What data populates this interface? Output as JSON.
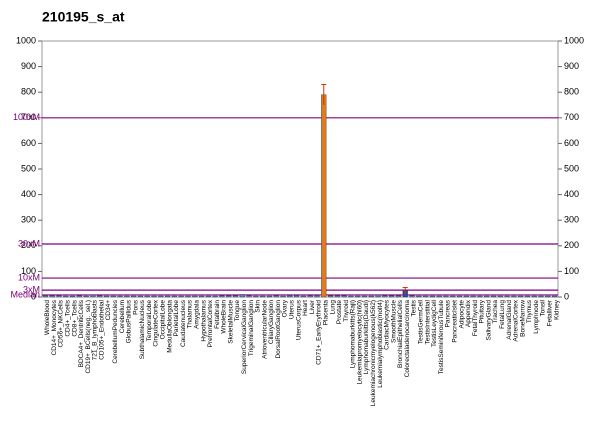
{
  "chart_data": {
    "type": "bar",
    "title": "210195_s_at",
    "categories": [
      "WholeBlood",
      "CD14+_Monocytes",
      "CD56+_NKCells",
      "CD4+_Tcells",
      "CD8+_Tcells",
      "BDCA4+_DentriticCells",
      "CD19+_BCells(neg._sel.)",
      "721_B_lymphoblasts",
      "CD105+_Endothelial",
      "CD34+",
      "CerebellumPeduncles",
      "Cerebellum",
      "GlobusPallidus",
      "Pons",
      "SubthalamicNucleus",
      "TemporalLobe",
      "CingulateCortex",
      "OccipitalLobe",
      "MedullaOblongata",
      "ParietalLobe",
      "Caudatenucleus",
      "Thalamus",
      "Amygdala",
      "Hypothalamus",
      "PrefrontalCortex",
      "Fetalbrain",
      "WholeBrain",
      "SkeletalMuscle",
      "Tongue",
      "SuperiorCervicalGanglion",
      "TrigeminalGanglion",
      "Skin",
      "AtrioventricularNode",
      "CiliaryGanglion",
      "DorsalRootGanglion",
      "Ovary",
      "Uterus",
      "UterusCorpus",
      "Heart",
      "Liver",
      "CD71+_EarlyErythroid",
      "Placenta",
      "Lung",
      "Prostate",
      "Thyroid",
      "Lymphomaburkitts(Raji)",
      "Leukemiapromyelocytic(hl60)",
      "Lymphomaburkitts(Daudi)",
      "Leukemiachronicmyelogenous(k562)",
      "Leukemialymphoblastic(molt4)",
      "CardiacMyocytes",
      "SmoothMuscle",
      "BronchialEpithelialCells",
      "Colorectaladenocarcinoma",
      "Testis",
      "TestisGermCell",
      "TestisInterstitial",
      "TestisLeydigCell",
      "TestisSeminiferousTubule",
      "Pancreas",
      "PancreaticIslet",
      "Adipocyte",
      "Appendix",
      "FetalThyroid",
      "Pituitary",
      "SalivaryGland",
      "Trachea",
      "FetalLung",
      "AdrenalGland",
      "AdrenalCortex",
      "BoneMarrow",
      "Thymus",
      "Lymphnode",
      "Tonsil",
      "Fetalliver",
      "Kidney"
    ],
    "values": [
      6,
      5,
      5,
      4,
      4,
      5,
      4,
      8,
      5,
      4,
      4,
      4,
      4,
      4,
      4,
      4,
      4,
      4,
      4,
      4,
      4,
      4,
      4,
      4,
      4,
      4,
      5,
      5,
      5,
      10,
      5,
      4,
      4,
      4,
      5,
      4,
      6,
      6,
      4,
      5,
      6,
      790,
      5,
      5,
      5,
      4,
      4,
      4,
      4,
      8,
      5,
      5,
      5,
      25,
      5,
      4,
      4,
      4,
      4,
      4,
      4,
      4,
      4,
      4,
      4,
      4,
      4,
      4,
      4,
      4,
      4,
      4,
      4,
      4,
      4,
      4
    ],
    "errors": [
      null,
      null,
      null,
      null,
      null,
      null,
      null,
      null,
      null,
      null,
      null,
      null,
      null,
      null,
      null,
      null,
      null,
      null,
      null,
      null,
      null,
      null,
      null,
      null,
      null,
      null,
      null,
      null,
      null,
      null,
      null,
      null,
      null,
      null,
      null,
      null,
      null,
      null,
      null,
      null,
      null,
      40,
      null,
      null,
      null,
      null,
      null,
      null,
      null,
      null,
      null,
      null,
      null,
      12,
      null,
      null,
      null,
      null,
      null,
      null,
      null,
      null,
      null,
      null,
      null,
      null,
      null,
      null,
      null,
      null,
      null,
      null,
      null,
      null,
      null,
      null
    ],
    "colors": [
      "#5a7fc0",
      "#5a7fc0",
      "#5a7fc0",
      "#5a7fc0",
      "#5a7fc0",
      "#5a7fc0",
      "#5a7fc0",
      "#5a7fc0",
      "#5a7fc0",
      "#5a7fc0",
      "#5a7fc0",
      "#5a7fc0",
      "#5a7fc0",
      "#5a7fc0",
      "#5a7fc0",
      "#5a7fc0",
      "#5a7fc0",
      "#5a7fc0",
      "#5a7fc0",
      "#5a7fc0",
      "#5a7fc0",
      "#5a7fc0",
      "#5a7fc0",
      "#5a7fc0",
      "#5a7fc0",
      "#5a7fc0",
      "#5a7fc0",
      "#5a7fc0",
      "#5a7fc0",
      "#5a7fc0",
      "#5a7fc0",
      "#5a7fc0",
      "#5a7fc0",
      "#5a7fc0",
      "#5a7fc0",
      "#5a7fc0",
      "#5a7fc0",
      "#5a7fc0",
      "#5a7fc0",
      "#5a7fc0",
      "#5a7fc0",
      "#e07b20",
      "#5a7fc0",
      "#5a7fc0",
      "#5a7fc0",
      "#5a7fc0",
      "#5a7fc0",
      "#5a7fc0",
      "#5a7fc0",
      "#5a7fc0",
      "#5a7fc0",
      "#5a7fc0",
      "#5a7fc0",
      "#3344aa",
      "#5a7fc0",
      "#5a7fc0",
      "#5a7fc0",
      "#5a7fc0",
      "#5a7fc0",
      "#5a7fc0",
      "#5a7fc0",
      "#5a7fc0",
      "#5a7fc0",
      "#5a7fc0",
      "#5a7fc0",
      "#5a7fc0",
      "#5a7fc0",
      "#5a7fc0",
      "#5a7fc0",
      "#5a7fc0",
      "#5a7fc0",
      "#5a7fc0",
      "#5a7fc0",
      "#5a7fc0",
      "#5a7fc0",
      "#5a7fc0"
    ],
    "error_color": "#cc3300",
    "ylim": [
      0,
      1000
    ],
    "yticks": [
      0,
      100,
      200,
      300,
      400,
      500,
      600,
      700,
      800,
      900,
      1000
    ],
    "y2lim": [
      0,
      1000
    ],
    "y2ticks": [
      0,
      100,
      200,
      300,
      400,
      500,
      600,
      700,
      800,
      900,
      1000
    ],
    "reference_lines": [
      {
        "label": "100xM",
        "value": 700
      },
      {
        "label": "30xM",
        "value": 207
      },
      {
        "label": "10xM",
        "value": 74
      },
      {
        "label": "3xM",
        "value": 27
      },
      {
        "label": "Median",
        "value": 8
      }
    ],
    "reference_color": "#800080"
  }
}
